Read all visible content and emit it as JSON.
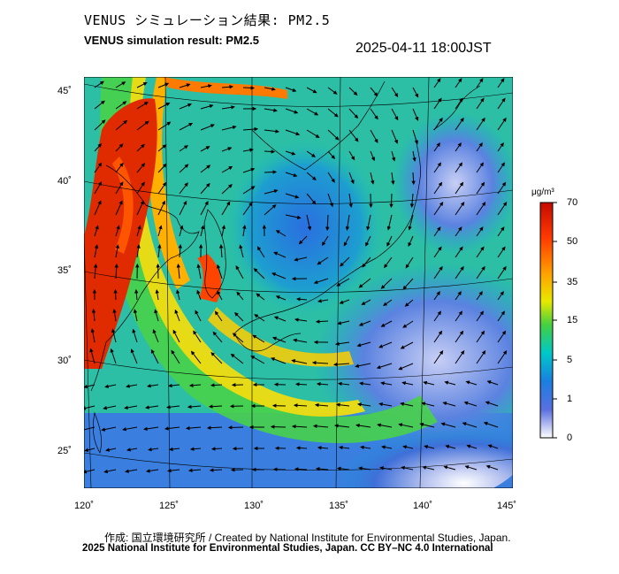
{
  "header": {
    "title_jp": "VENUS シミュレーション結果: PM2.5",
    "title_en": "VENUS simulation result: PM2.5",
    "timestamp": "2025-04-11 18:00JST"
  },
  "map": {
    "lat_ticks": [
      "45˚",
      "40˚",
      "35˚",
      "30˚",
      "25˚"
    ],
    "lon_ticks": [
      "120˚",
      "125˚",
      "130˚",
      "135˚",
      "140˚",
      "145˚"
    ],
    "field": "PM2.5 concentration with wind vectors"
  },
  "colorbar": {
    "unit": "μg/m³",
    "ticks": [
      "70",
      "50",
      "35",
      "15",
      "5",
      "1",
      "0"
    ],
    "colors": [
      "#cc1100",
      "#ff4400",
      "#ffaa00",
      "#e8e800",
      "#33cc33",
      "#00cccc",
      "#0077dd",
      "#3344cc",
      "#ffffff"
    ]
  },
  "footer": {
    "credit_line1": "作成: 国立環境研究所 / Created by National Institute for Environmental Studies, Japan.",
    "credit_line2": "2025 National Institute for Environmental Studies, Japan. CC BY–NC 4.0 International"
  }
}
